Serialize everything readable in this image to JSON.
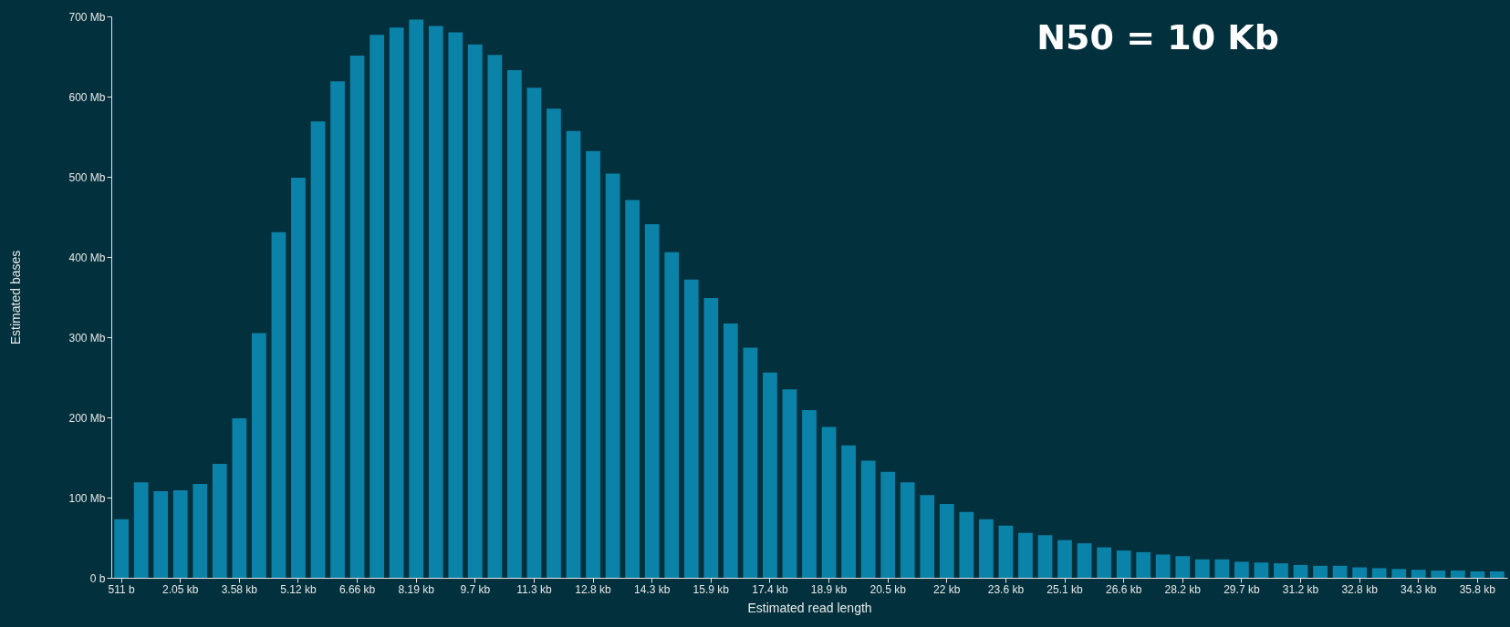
{
  "chart_data": {
    "type": "bar",
    "title": "N50 = 10 Kb",
    "xlabel": "Estimated read length",
    "ylabel": "Estimated bases",
    "color": "#0b83a9",
    "categories": [
      "511 b",
      null,
      null,
      "2.05 kb",
      null,
      null,
      "3.58 kb",
      null,
      null,
      "5.12 kb",
      null,
      null,
      "6.66 kb",
      null,
      null,
      "8.19 kb",
      null,
      null,
      "9.7 kb",
      null,
      null,
      "11.3 kb",
      null,
      null,
      "12.8 kb",
      null,
      null,
      "14.3 kb",
      null,
      null,
      "15.9 kb",
      null,
      null,
      "17.4 kb",
      null,
      null,
      "18.9 kb",
      null,
      null,
      "20.5 kb",
      null,
      null,
      "22 kb",
      null,
      null,
      "23.6 kb",
      null,
      null,
      "25.1 kb",
      null,
      null,
      "26.6 kb",
      null,
      null,
      "28.2 kb",
      null,
      null,
      "29.7 kb",
      null,
      null,
      "31.2 kb",
      null,
      null,
      "32.8 kb",
      null,
      null,
      "34.3 kb",
      null,
      null,
      "35.8 kb",
      null
    ],
    "values": [
      73,
      119,
      108,
      109,
      117,
      142,
      199,
      305,
      431,
      499,
      569,
      619,
      651,
      677,
      686,
      696,
      688,
      680,
      665,
      652,
      633,
      611,
      585,
      557,
      532,
      504,
      471,
      441,
      406,
      372,
      349,
      317,
      287,
      256,
      235,
      209,
      188,
      165,
      146,
      132,
      119,
      103,
      92,
      82,
      73,
      65,
      56,
      53,
      47,
      43,
      38,
      34,
      32,
      29,
      27,
      23,
      23,
      20,
      19,
      18,
      16,
      15,
      15,
      13,
      12,
      11,
      10,
      9,
      9,
      8,
      8
    ],
    "ylim": [
      0,
      700
    ],
    "yticks": [
      {
        "value": 0,
        "label": "0 b"
      },
      {
        "value": 100,
        "label": "100 Mb"
      },
      {
        "value": 200,
        "label": "200 Mb"
      },
      {
        "value": 300,
        "label": "300 Mb"
      },
      {
        "value": 400,
        "label": "400 Mb"
      },
      {
        "value": 500,
        "label": "500 Mb"
      },
      {
        "value": 600,
        "label": "600 Mb"
      },
      {
        "value": 700,
        "label": "700 Mb"
      }
    ],
    "grid": false
  }
}
